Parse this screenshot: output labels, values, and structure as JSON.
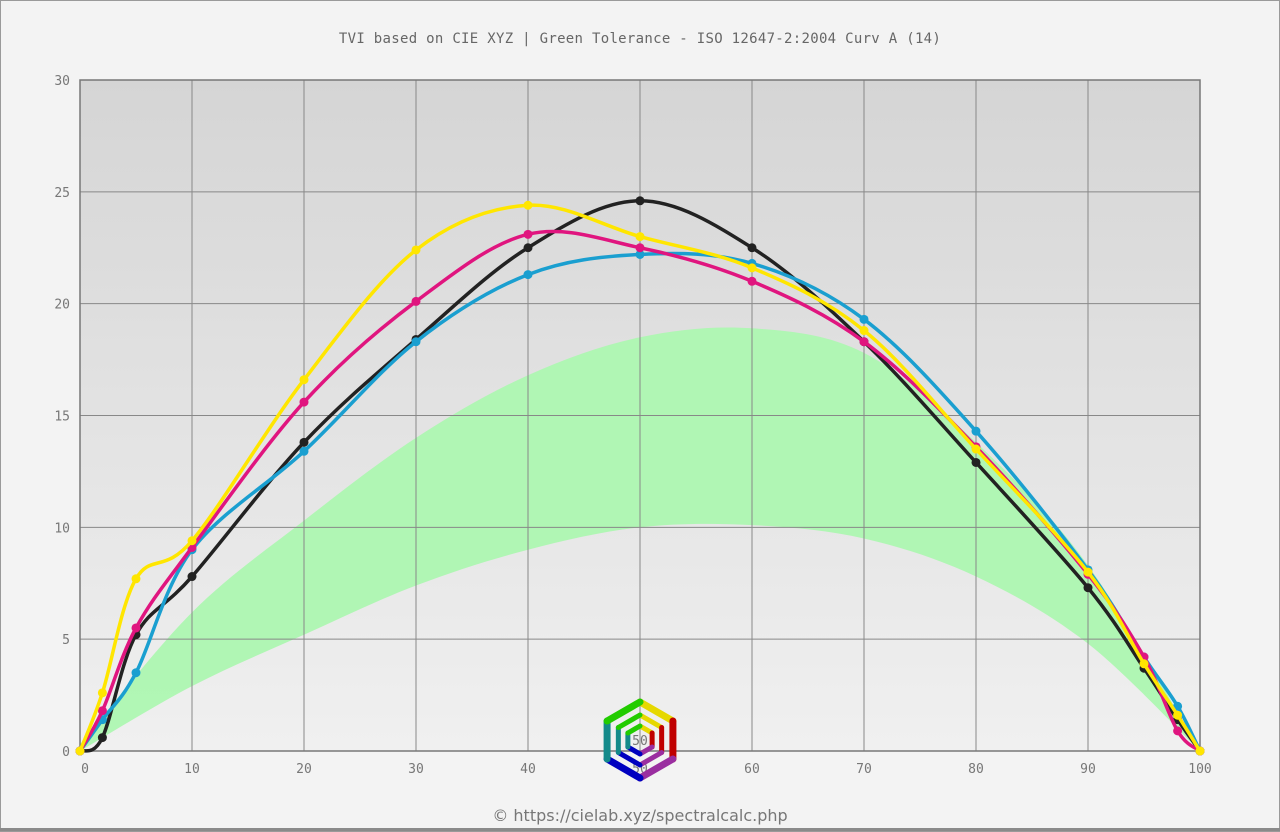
{
  "title": "TVI based on CIE XYZ  |  Green Tolerance - ISO 12647-2:2004 Curv A (14)",
  "credit": "© https://cielab.xyz/spectralcalc.php",
  "logo_text": "50",
  "chart_data": {
    "type": "line",
    "title": "TVI based on CIE XYZ  |  Green Tolerance - ISO 12647-2:2004 Curv A (14)",
    "xlabel": "",
    "ylabel": "",
    "xlim": [
      0,
      100
    ],
    "ylim": [
      0,
      30
    ],
    "grid": true,
    "x_ticks": [
      "0",
      "10",
      "20",
      "30",
      "40",
      "50",
      "60",
      "70",
      "80",
      "90",
      "100"
    ],
    "y_ticks": [
      "0",
      "5",
      "10",
      "15",
      "20",
      "25",
      "30"
    ],
    "x": [
      0,
      2,
      5,
      10,
      20,
      30,
      40,
      50,
      60,
      70,
      80,
      90,
      95,
      98,
      100
    ],
    "series": [
      {
        "name": "Black",
        "color": "#222222",
        "values": [
          0,
          0.6,
          5.2,
          7.8,
          13.8,
          18.4,
          22.5,
          24.6,
          22.5,
          18.3,
          12.9,
          7.3,
          3.7,
          1.4,
          0
        ]
      },
      {
        "name": "Cyan",
        "color": "#1a9fd0",
        "values": [
          0,
          1.4,
          3.5,
          9.0,
          13.4,
          18.3,
          21.3,
          22.2,
          21.8,
          19.3,
          14.3,
          8.1,
          4.2,
          2.0,
          0
        ]
      },
      {
        "name": "Magenta",
        "color": "#e0157f",
        "values": [
          0,
          1.8,
          5.5,
          9.1,
          15.6,
          20.1,
          23.1,
          22.5,
          21.0,
          18.3,
          13.6,
          7.9,
          4.2,
          0.9,
          0
        ]
      },
      {
        "name": "Yellow",
        "color": "#ffe600",
        "values": [
          0,
          2.6,
          7.7,
          9.4,
          16.6,
          22.4,
          24.4,
          23.0,
          21.6,
          18.8,
          13.5,
          8.0,
          3.9,
          1.6,
          0
        ]
      }
    ],
    "tolerance_band": {
      "name": "Green Tolerance",
      "color": "#adf7b1",
      "x": [
        0,
        10,
        20,
        30,
        40,
        50,
        60,
        70,
        80,
        90,
        100
      ],
      "lower": [
        0,
        2.9,
        5.2,
        7.4,
        9.0,
        10.0,
        10.1,
        9.5,
        7.8,
        4.8,
        0
      ],
      "upper": [
        0.3,
        6.2,
        10.3,
        14.0,
        16.8,
        18.5,
        18.9,
        17.8,
        13.8,
        8.3,
        0
      ]
    }
  }
}
